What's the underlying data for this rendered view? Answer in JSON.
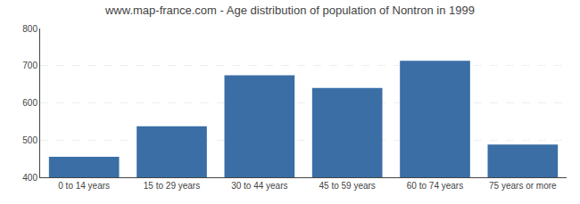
{
  "chart_data": {
    "type": "bar",
    "title": "www.map-france.com - Age distribution of population of Nontron in 1999",
    "categories": [
      "0 to 14 years",
      "15 to 29 years",
      "30 to 44 years",
      "45 to 59 years",
      "60 to 74 years",
      "75 years or more"
    ],
    "values": [
      455,
      537,
      674,
      640,
      713,
      488
    ],
    "color": "#3a6ea5",
    "ylim": [
      400,
      800
    ],
    "yticks": [
      400,
      500,
      600,
      700,
      800
    ],
    "grid": true
  }
}
